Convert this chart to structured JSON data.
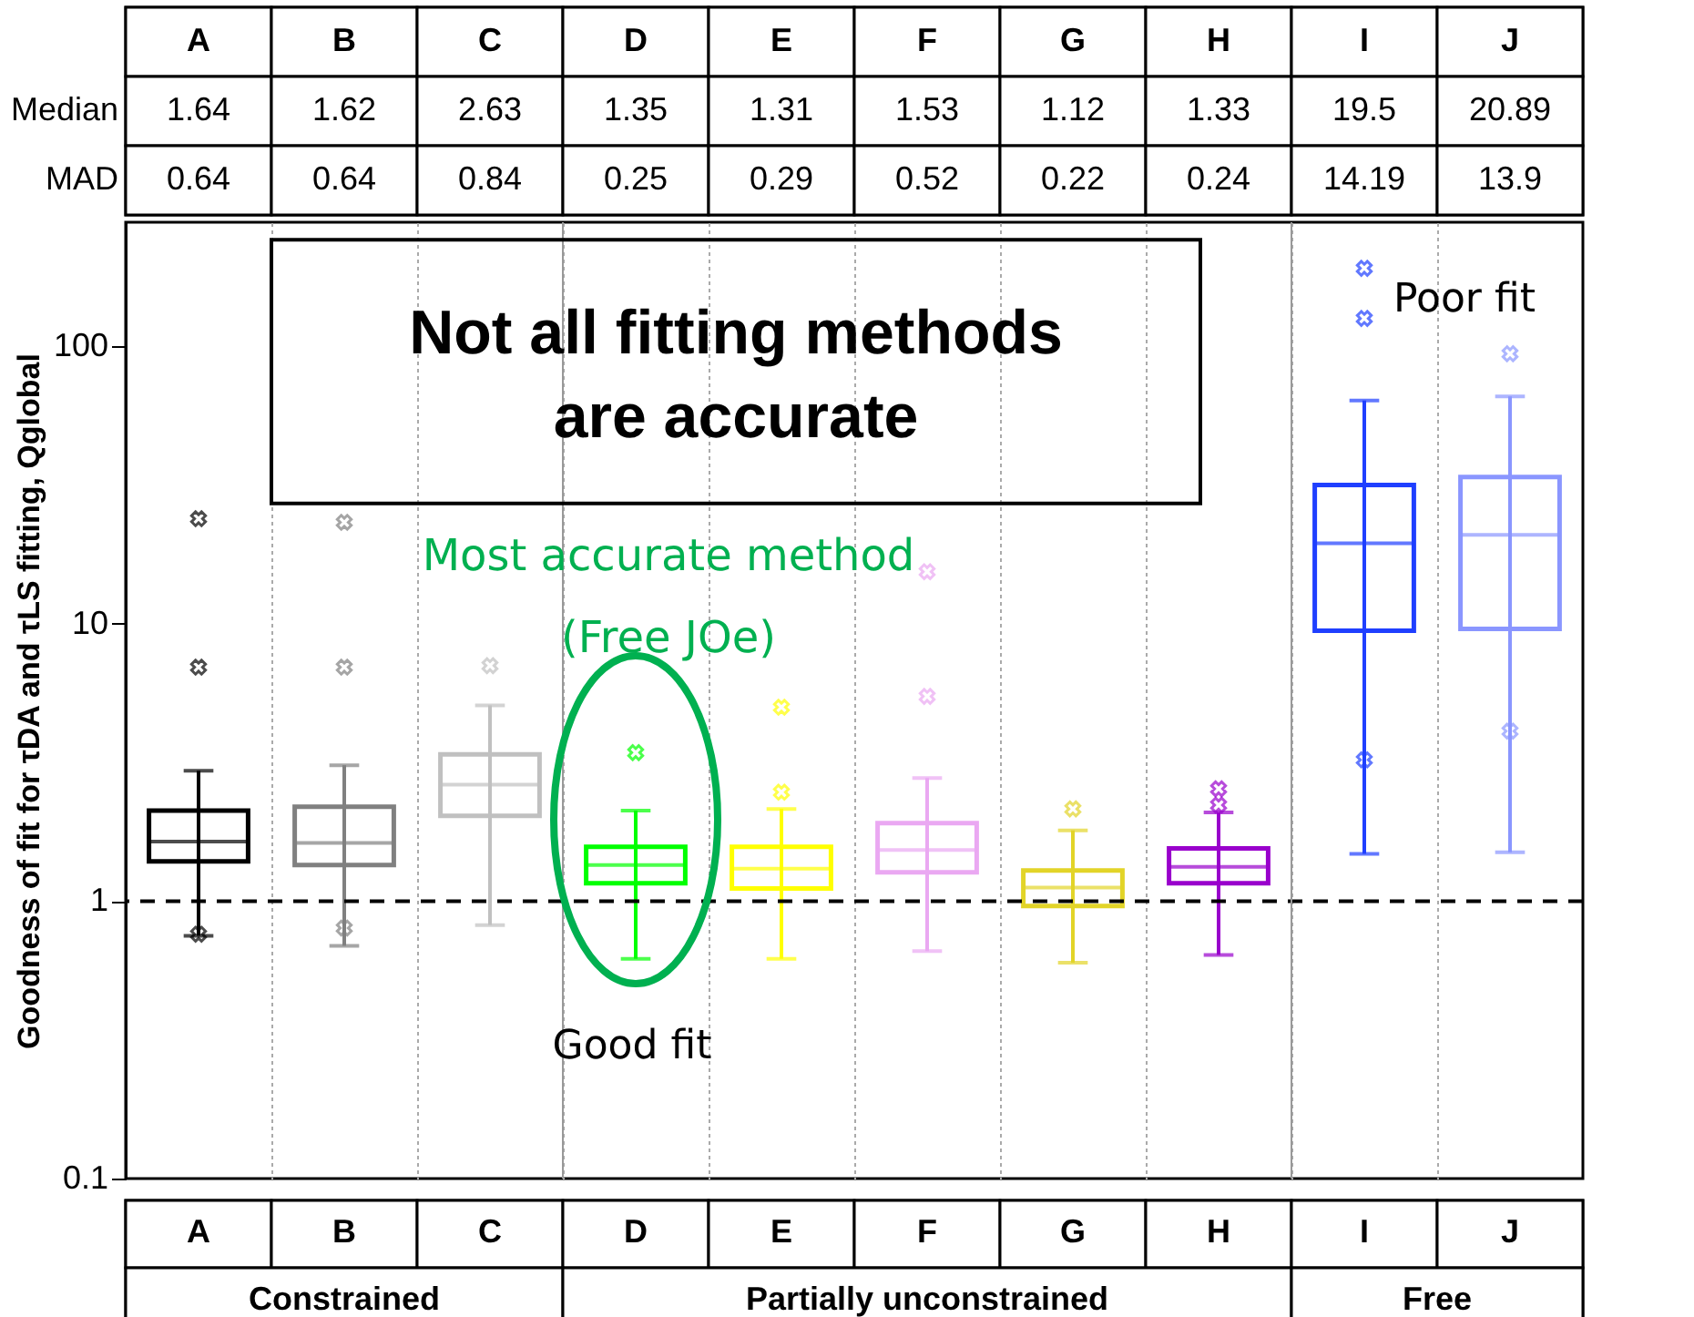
{
  "chart_data": {
    "type": "box",
    "categories": [
      "A",
      "B",
      "C",
      "D",
      "E",
      "F",
      "G",
      "H",
      "I",
      "J"
    ],
    "colors": [
      "#000000",
      "#808080",
      "#c0c0c0",
      "#00ff00",
      "#ffff00",
      "#eaa8f2",
      "#e2d428",
      "#9900cc",
      "#1f3fff",
      "#8a96ff"
    ],
    "boxes": [
      {
        "low": 0.75,
        "q1": 1.39,
        "median": 1.64,
        "q3": 2.12,
        "high": 2.95,
        "outliers": [
          6.97,
          0.76,
          23.9
        ]
      },
      {
        "low": 0.69,
        "q1": 1.35,
        "median": 1.62,
        "q3": 2.19,
        "high": 3.09,
        "outliers": [
          6.97,
          0.8,
          23.2
        ]
      },
      {
        "low": 0.82,
        "q1": 2.03,
        "median": 2.63,
        "q3": 3.38,
        "high": 5.08,
        "outliers": [
          7.06
        ]
      },
      {
        "low": 0.62,
        "q1": 1.16,
        "median": 1.35,
        "q3": 1.57,
        "high": 2.12,
        "outliers": [
          3.43
        ]
      },
      {
        "low": 0.62,
        "q1": 1.11,
        "median": 1.31,
        "q3": 1.57,
        "high": 2.15,
        "outliers": [
          2.47,
          5.0
        ]
      },
      {
        "low": 0.66,
        "q1": 1.27,
        "median": 1.53,
        "q3": 1.91,
        "high": 2.78,
        "outliers": [
          5.47,
          15.4
        ]
      },
      {
        "low": 0.6,
        "q1": 0.96,
        "median": 1.12,
        "q3": 1.29,
        "high": 1.8,
        "outliers": [
          2.15
        ]
      },
      {
        "low": 0.64,
        "q1": 1.16,
        "median": 1.33,
        "q3": 1.55,
        "high": 2.09,
        "outliers": [
          2.54,
          2.22
        ]
      },
      {
        "low": 1.48,
        "q1": 9.43,
        "median": 19.5,
        "q3": 31.6,
        "high": 63.7,
        "outliers": [
          126,
          3.23,
          191
        ]
      },
      {
        "low": 1.5,
        "q1": 9.57,
        "median": 20.89,
        "q3": 33.8,
        "high": 66,
        "outliers": [
          94,
          4.1
        ]
      }
    ],
    "ylim": [
      0.1,
      280
    ],
    "yticks": [
      0.1,
      1,
      10,
      100
    ],
    "log": true,
    "grid": "x",
    "ylabel": "Goodness of fit for τDA and τLS fitting, Qglobal",
    "ref_lines": [
      {
        "axis": "y",
        "value": 1,
        "color": "#000000",
        "line_style": "dashed"
      }
    ],
    "annotations": [
      "Not all fitting methods\nare accurate",
      "Most accurate method",
      "(Free JOe)",
      "Good fit",
      "Poor fit",
      "Median",
      "MAD",
      "1.64",
      "1.62",
      "2.63",
      "1.35",
      "1.31",
      "1.53",
      "1.12",
      "1.33",
      "19.5",
      "20.89",
      "0.64",
      "0.64",
      "0.84",
      "0.25",
      "0.29",
      "0.52",
      "0.22",
      "0.24",
      "14.19",
      "13.9",
      "Constrained",
      "Partially unconstrained",
      "Free"
    ]
  }
}
